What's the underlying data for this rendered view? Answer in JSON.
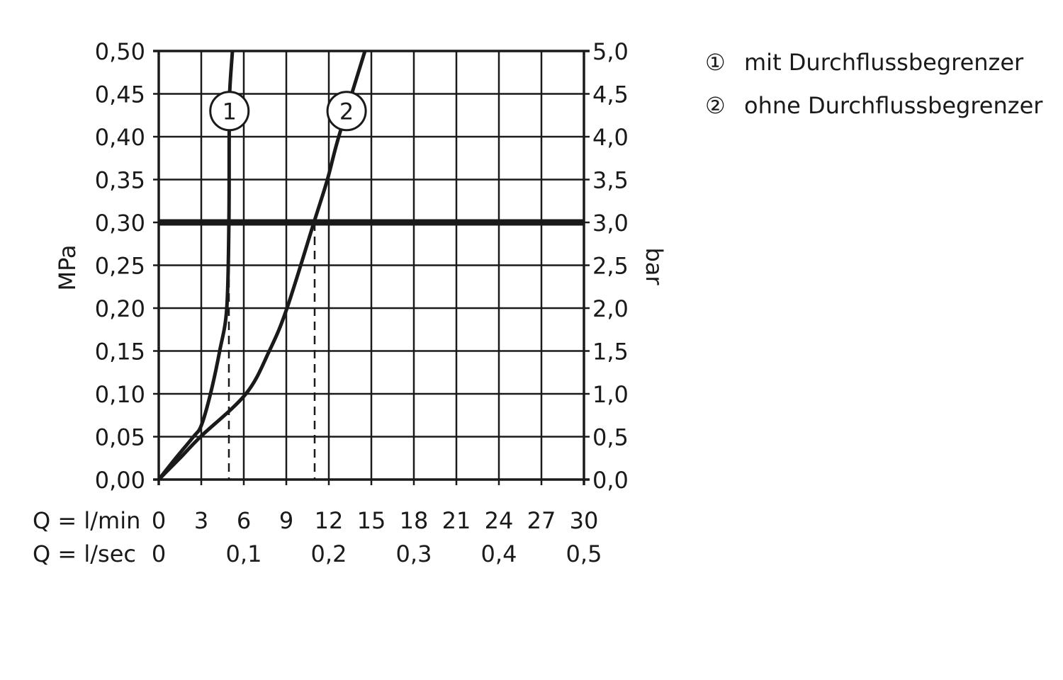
{
  "chart_data": {
    "type": "line",
    "ylabel_left": "MPa",
    "ylabel_right": "bar",
    "x_label_lmin": "Q = l/min",
    "x_label_lsec": "Q = l/sec",
    "xlim": [
      0,
      30
    ],
    "ylim": [
      0,
      0.5
    ],
    "grid": true,
    "x_ticks_lmin": [
      "0",
      "3",
      "6",
      "9",
      "12",
      "15",
      "18",
      "21",
      "24",
      "27",
      "30"
    ],
    "x_ticks_lsec": [
      {
        "at": 0,
        "label": "0"
      },
      {
        "at": 6,
        "label": "0,1"
      },
      {
        "at": 12,
        "label": "0,2"
      },
      {
        "at": 18,
        "label": "0,3"
      },
      {
        "at": 24,
        "label": "0,4"
      },
      {
        "at": 30,
        "label": "0,5"
      }
    ],
    "y_ticks_left": [
      "0,00",
      "0,05",
      "0,10",
      "0,15",
      "0,20",
      "0,25",
      "0,30",
      "0,35",
      "0,40",
      "0,45",
      "0,50"
    ],
    "y_ticks_right": [
      "0,0",
      "0,5",
      "1,0",
      "1,5",
      "2,0",
      "2,5",
      "3,0",
      "3,5",
      "4,0",
      "4,5",
      "5,0"
    ],
    "reference_line_y": 0.3,
    "series": [
      {
        "name": "1",
        "x": [
          0,
          1.2,
          2.45,
          3.0,
          3.65,
          4.3,
          4.8,
          4.95,
          4.97,
          5.0,
          5.2
        ],
        "y": [
          0,
          0.025,
          0.05,
          0.063,
          0.1,
          0.15,
          0.2,
          0.3,
          0.4,
          0.45,
          0.5
        ],
        "marker_x": 4.95,
        "label_y": 0.43
      },
      {
        "name": "2",
        "x": [
          0,
          1.5,
          2.95,
          6.15,
          7.8,
          9.05,
          10.95,
          11.9,
          12.7,
          14.55
        ],
        "y": [
          0,
          0.025,
          0.05,
          0.1,
          0.15,
          0.2,
          0.3,
          0.35,
          0.4,
          0.5
        ],
        "marker_x": 11,
        "label_y": 0.43
      }
    ],
    "legend": [
      {
        "symbol": "①",
        "text": "mit Durchflussbegrenzer"
      },
      {
        "symbol": "②",
        "text": "ohne Durchflussbegrenzer"
      }
    ],
    "legend_placement": "top-right"
  }
}
